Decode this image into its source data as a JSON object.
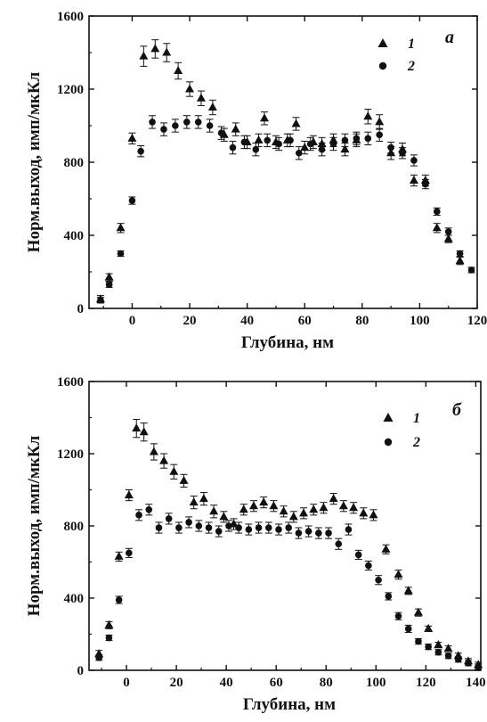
{
  "chart_data": [
    {
      "type": "scatter",
      "panel_label": "a",
      "xlabel": "Глубина, нм",
      "ylabel": "Норм.выход, имп/мкКл",
      "xlim": [
        -15,
        120
      ],
      "ylim": [
        0,
        1600
      ],
      "xticks": [
        0,
        20,
        40,
        60,
        80,
        100,
        120
      ],
      "yticks": [
        0,
        400,
        800,
        1200,
        1600
      ],
      "grid": false,
      "legend_position": "top-right",
      "series": [
        {
          "name": "1",
          "marker": "triangle",
          "points": [
            [
              -11,
              50
            ],
            [
              -8,
              170
            ],
            [
              -4,
              440
            ],
            [
              0,
              930
            ],
            [
              4,
              1380
            ],
            [
              8,
              1420
            ],
            [
              12,
              1400
            ],
            [
              16,
              1300
            ],
            [
              20,
              1200
            ],
            [
              24,
              1150
            ],
            [
              28,
              1100
            ],
            [
              32,
              950
            ],
            [
              36,
              980
            ],
            [
              40,
              910
            ],
            [
              44,
              920
            ],
            [
              46,
              1040
            ],
            [
              50,
              910
            ],
            [
              54,
              920
            ],
            [
              57,
              1010
            ],
            [
              60,
              880
            ],
            [
              63,
              910
            ],
            [
              66,
              900
            ],
            [
              70,
              920
            ],
            [
              74,
              870
            ],
            [
              78,
              920
            ],
            [
              82,
              1050
            ],
            [
              86,
              1020
            ],
            [
              90,
              850
            ],
            [
              94,
              870
            ],
            [
              98,
              700
            ],
            [
              102,
              700
            ],
            [
              106,
              440
            ],
            [
              110,
              380
            ],
            [
              114,
              260
            ]
          ],
          "errors": [
            20,
            20,
            25,
            30,
            55,
            50,
            50,
            45,
            40,
            40,
            40,
            35,
            35,
            35,
            35,
            35,
            35,
            35,
            35,
            35,
            35,
            35,
            35,
            35,
            35,
            40,
            40,
            35,
            35,
            30,
            30,
            25,
            20,
            20
          ]
        },
        {
          "name": "2",
          "marker": "circle",
          "points": [
            [
              -11,
              45
            ],
            [
              -8,
              130
            ],
            [
              -4,
              300
            ],
            [
              0,
              590
            ],
            [
              3,
              860
            ],
            [
              7,
              1020
            ],
            [
              11,
              980
            ],
            [
              15,
              1000
            ],
            [
              19,
              1020
            ],
            [
              23,
              1020
            ],
            [
              27,
              1000
            ],
            [
              31,
              960
            ],
            [
              35,
              880
            ],
            [
              39,
              910
            ],
            [
              43,
              870
            ],
            [
              47,
              920
            ],
            [
              51,
              900
            ],
            [
              55,
              920
            ],
            [
              58,
              850
            ],
            [
              62,
              900
            ],
            [
              66,
              870
            ],
            [
              70,
              900
            ],
            [
              74,
              920
            ],
            [
              78,
              930
            ],
            [
              82,
              930
            ],
            [
              86,
              950
            ],
            [
              90,
              880
            ],
            [
              94,
              850
            ],
            [
              98,
              810
            ],
            [
              102,
              680
            ],
            [
              106,
              530
            ],
            [
              110,
              420
            ],
            [
              114,
              300
            ],
            [
              118,
              210
            ]
          ],
          "errors": [
            15,
            15,
            15,
            20,
            30,
            35,
            35,
            35,
            35,
            35,
            35,
            35,
            35,
            35,
            35,
            35,
            35,
            35,
            35,
            35,
            35,
            35,
            35,
            35,
            35,
            35,
            30,
            30,
            30,
            25,
            20,
            20,
            15,
            15
          ]
        }
      ]
    },
    {
      "type": "scatter",
      "panel_label": "б",
      "xlabel": "Глубина, нм",
      "ylabel": "Норм.выход, имп/мкКл",
      "xlim": [
        -15,
        142
      ],
      "ylim": [
        0,
        1600
      ],
      "xticks": [
        0,
        20,
        40,
        60,
        80,
        100,
        120,
        140
      ],
      "yticks": [
        0,
        400,
        800,
        1200,
        1600
      ],
      "grid": false,
      "legend_position": "top-right",
      "series": [
        {
          "name": "1",
          "marker": "triangle",
          "points": [
            [
              -11,
              90
            ],
            [
              -7,
              250
            ],
            [
              -3,
              630
            ],
            [
              1,
              970
            ],
            [
              4,
              1340
            ],
            [
              7,
              1320
            ],
            [
              11,
              1210
            ],
            [
              15,
              1160
            ],
            [
              19,
              1100
            ],
            [
              23,
              1050
            ],
            [
              27,
              930
            ],
            [
              31,
              950
            ],
            [
              35,
              880
            ],
            [
              39,
              850
            ],
            [
              43,
              810
            ],
            [
              47,
              890
            ],
            [
              51,
              910
            ],
            [
              55,
              930
            ],
            [
              59,
              910
            ],
            [
              63,
              880
            ],
            [
              67,
              850
            ],
            [
              71,
              870
            ],
            [
              75,
              890
            ],
            [
              79,
              900
            ],
            [
              83,
              950
            ],
            [
              87,
              910
            ],
            [
              91,
              900
            ],
            [
              95,
              870
            ],
            [
              99,
              860
            ],
            [
              104,
              670
            ],
            [
              109,
              530
            ],
            [
              113,
              440
            ],
            [
              117,
              320
            ],
            [
              121,
              230
            ],
            [
              125,
              140
            ],
            [
              129,
              120
            ],
            [
              133,
              80
            ],
            [
              137,
              50
            ],
            [
              141,
              30
            ]
          ],
          "errors": [
            20,
            20,
            25,
            30,
            50,
            50,
            45,
            40,
            40,
            35,
            35,
            35,
            35,
            30,
            30,
            30,
            30,
            30,
            30,
            30,
            30,
            30,
            30,
            30,
            30,
            30,
            30,
            30,
            30,
            25,
            25,
            20,
            20,
            15,
            15,
            15,
            15,
            15,
            15
          ]
        },
        {
          "name": "2",
          "marker": "circle",
          "points": [
            [
              -11,
              70
            ],
            [
              -7,
              180
            ],
            [
              -3,
              390
            ],
            [
              1,
              650
            ],
            [
              5,
              860
            ],
            [
              9,
              890
            ],
            [
              13,
              790
            ],
            [
              17,
              840
            ],
            [
              21,
              790
            ],
            [
              25,
              820
            ],
            [
              29,
              800
            ],
            [
              33,
              790
            ],
            [
              37,
              770
            ],
            [
              41,
              800
            ],
            [
              45,
              790
            ],
            [
              49,
              780
            ],
            [
              53,
              790
            ],
            [
              57,
              790
            ],
            [
              61,
              780
            ],
            [
              65,
              790
            ],
            [
              69,
              760
            ],
            [
              73,
              770
            ],
            [
              77,
              760
            ],
            [
              81,
              760
            ],
            [
              85,
              700
            ],
            [
              89,
              780
            ],
            [
              93,
              640
            ],
            [
              97,
              580
            ],
            [
              101,
              500
            ],
            [
              105,
              410
            ],
            [
              109,
              300
            ],
            [
              113,
              230
            ],
            [
              117,
              160
            ],
            [
              121,
              130
            ],
            [
              125,
              100
            ],
            [
              129,
              80
            ],
            [
              133,
              60
            ],
            [
              137,
              40
            ],
            [
              141,
              20
            ]
          ],
          "errors": [
            15,
            15,
            20,
            25,
            30,
            30,
            30,
            30,
            30,
            30,
            30,
            30,
            30,
            30,
            30,
            30,
            30,
            30,
            30,
            30,
            30,
            30,
            30,
            30,
            30,
            30,
            25,
            25,
            25,
            20,
            20,
            20,
            15,
            15,
            15,
            15,
            15,
            15,
            15
          ]
        }
      ]
    }
  ]
}
